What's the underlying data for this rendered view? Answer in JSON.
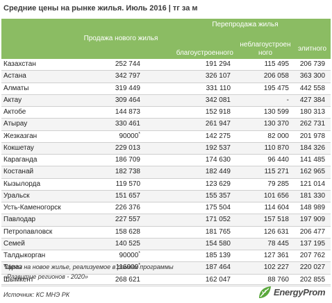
{
  "title": "Средние цены на рынке жилья. Июль 2016 | тг за м",
  "header": {
    "col_new": "Продажа нового жилья",
    "col_resale": "Перепродажа жилья",
    "col_good": "благоустроенного",
    "col_bad": "неблагоустроен ного",
    "col_elite": "элитного"
  },
  "rows": [
    {
      "city": "Казахстан",
      "new": "252 744",
      "new_note": "",
      "good": "191 294",
      "bad": "115 495",
      "elite": "206 739"
    },
    {
      "city": "Астана",
      "new": "342 797",
      "new_note": "",
      "good": "326 107",
      "bad": "206 058",
      "elite": "363 300"
    },
    {
      "city": "Алматы",
      "new": "319 449",
      "new_note": "",
      "good": "331 110",
      "bad": "195 475",
      "elite": "442 558"
    },
    {
      "city": "Актау",
      "new": "309 464",
      "new_note": "",
      "good": "342 081",
      "bad": "-",
      "elite": "427 384"
    },
    {
      "city": "Актобе",
      "new": "144 873",
      "new_note": "",
      "good": "152 918",
      "bad": "130 599",
      "elite": "180 313"
    },
    {
      "city": "Атырау",
      "new": "330 461",
      "new_note": "",
      "good": "261 947",
      "bad": "130 370",
      "elite": "262 731"
    },
    {
      "city": "Жезказган",
      "new": "90000",
      "new_note": "*",
      "good": "142 275",
      "bad": "82 000",
      "elite": "201 978"
    },
    {
      "city": "Кокшетау",
      "new": "229 013",
      "new_note": "",
      "good": "192 537",
      "bad": "110 870",
      "elite": "184 326"
    },
    {
      "city": "Караганда",
      "new": "186 709",
      "new_note": "",
      "good": "174 630",
      "bad": "96 440",
      "elite": "141 485"
    },
    {
      "city": "Костанай",
      "new": "182 738",
      "new_note": "",
      "good": "182 449",
      "bad": "115 271",
      "elite": "162 965"
    },
    {
      "city": "Кызылорда",
      "new": "119 570",
      "new_note": "",
      "good": "123 629",
      "bad": "79 285",
      "elite": "121 014"
    },
    {
      "city": "Уральск",
      "new": "151 657",
      "new_note": "",
      "good": "155 357",
      "bad": "101 656",
      "elite": "181 330"
    },
    {
      "city": "Усть-Каменогорск",
      "new": "226 376",
      "new_note": "",
      "good": "175 504",
      "bad": "114 604",
      "elite": "148 989"
    },
    {
      "city": "Павлодар",
      "new": "227 557",
      "new_note": "",
      "good": "171 052",
      "bad": "157 518",
      "elite": "197 909"
    },
    {
      "city": "Петропавловск",
      "new": "158 628",
      "new_note": "",
      "good": "181 765",
      "bad": "126 631",
      "elite": "206 477"
    },
    {
      "city": "Семей",
      "new": "140 525",
      "new_note": "",
      "good": "154 580",
      "bad": "78 445",
      "elite": "137 195"
    },
    {
      "city": "Талдыкорган",
      "new": "90000",
      "new_note": "*",
      "good": "185 139",
      "bad": "127 361",
      "elite": "207 762"
    },
    {
      "city": "Тараз",
      "new": "116000",
      "new_note": "*",
      "good": "187 464",
      "bad": "102 227",
      "elite": "220 027"
    },
    {
      "city": "Шымкент",
      "new": "268 621",
      "new_note": "",
      "good": "162 047",
      "bad": "88 760",
      "elite": "202 855"
    }
  ],
  "footnote_1": "*Цены на новое жилье, реализуемое в рамках программы",
  "footnote_2": "«Развитие регионов - 2020»",
  "source": "Источник: КС МНЭ РК",
  "logo_text": "EnergyProm",
  "colors": {
    "header_bg": "#8bbc63",
    "logo_green": "#5aa83c"
  }
}
